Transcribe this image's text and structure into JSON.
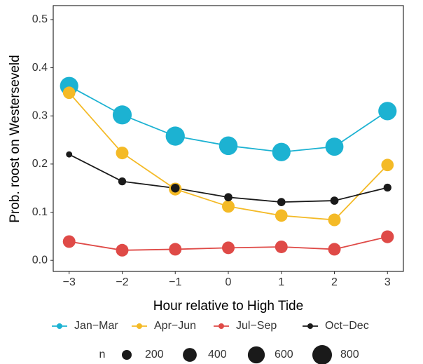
{
  "chart_data": {
    "type": "line",
    "x_label": "Hour relative to High Tide",
    "y_label": "Prob. roost on Westerseveld",
    "x": [
      -3,
      -2,
      -1,
      0,
      1,
      2,
      3
    ],
    "xlim": [
      -3.3,
      3.3
    ],
    "xticks": [
      {
        "value": -3,
        "label": "−3"
      },
      {
        "value": -2,
        "label": "−2"
      },
      {
        "value": -1,
        "label": "−1"
      },
      0,
      1,
      2,
      3
    ],
    "ylim": [
      -0.023,
      0.529
    ],
    "yticks": [
      {
        "value": 0,
        "label": "0.0"
      },
      0.1,
      0.2,
      0.3,
      0.4,
      0.5
    ],
    "grid": false,
    "series": [
      {
        "name": "Jan−Mar",
        "color": "#1cb2d2",
        "values": [
          0.362,
          0.302,
          0.258,
          0.238,
          0.225,
          0.236,
          0.31
        ],
        "sizes": [
          700,
          750,
          760,
          720,
          700,
          680,
          700
        ]
      },
      {
        "name": "Apr−Jun",
        "color": "#f4ba26",
        "values": [
          0.348,
          0.223,
          0.148,
          0.112,
          0.093,
          0.084,
          0.198
        ],
        "sizes": [
          320,
          330,
          340,
          330,
          320,
          330,
          320
        ]
      },
      {
        "name": "Jul−Sep",
        "color": "#df4a47",
        "values": [
          0.039,
          0.021,
          0.023,
          0.026,
          0.028,
          0.023,
          0.049
        ],
        "sizes": [
          330,
          330,
          330,
          330,
          330,
          330,
          340
        ]
      },
      {
        "name": "Oct−Dec",
        "color": "#1a1a1a",
        "values": [
          0.22,
          0.164,
          0.15,
          0.131,
          0.121,
          0.124,
          0.151
        ],
        "sizes": [
          80,
          130,
          160,
          140,
          140,
          140,
          130
        ]
      }
    ],
    "size_legend": {
      "title": "n",
      "values": [
        200,
        400,
        600,
        800
      ]
    }
  }
}
